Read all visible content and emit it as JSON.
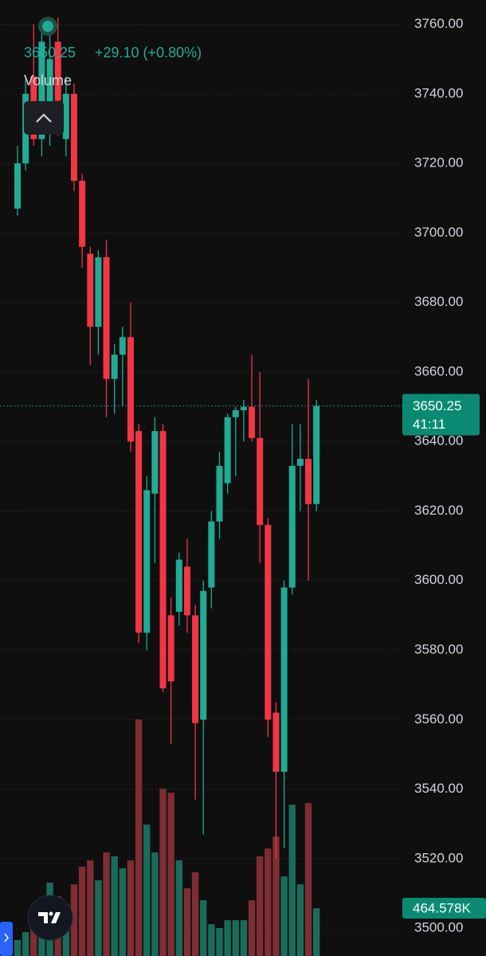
{
  "chart_data": {
    "type": "candlestick",
    "header": {
      "price": "3650.25",
      "change": "+29.10 (+0.80%)",
      "indicator": "Volume"
    },
    "open": [
      3707,
      3720,
      3745,
      3727,
      3735,
      3755,
      3727,
      3740,
      3715,
      3694,
      3673,
      3693,
      3658,
      3665,
      3670,
      3643,
      3585,
      3625,
      3643,
      3590,
      3591,
      3604,
      3590,
      3560,
      3598,
      3617,
      3628,
      3647,
      3649,
      3650,
      3641,
      3616,
      3562,
      3545,
      3598,
      3633,
      3635,
      3622
    ],
    "high": [
      3725,
      3745,
      3760,
      3760,
      3762,
      3762,
      3745,
      3743,
      3717,
      3696,
      3695,
      3698,
      3668,
      3673,
      3680,
      3645,
      3630,
      3647,
      3645,
      3595,
      3608,
      3612,
      3593,
      3600,
      3620,
      3637,
      3648,
      3650,
      3652,
      3665,
      3660,
      3618,
      3565,
      3600,
      3645,
      3645,
      3658,
      3652
    ],
    "low": [
      3705,
      3718,
      3725,
      3722,
      3725,
      3728,
      3722,
      3712,
      3690,
      3662,
      3665,
      3647,
      3648,
      3650,
      3637,
      3582,
      3580,
      3605,
      3568,
      3553,
      3587,
      3585,
      3537,
      3527,
      3592,
      3612,
      3625,
      3630,
      3640,
      3640,
      3605,
      3555,
      3520,
      3523,
      3596,
      3620,
      3600,
      3620
    ],
    "close": [
      3720,
      3740,
      3727,
      3755,
      3750,
      3738,
      3740,
      3715,
      3696,
      3673,
      3693,
      3658,
      3665,
      3670,
      3640,
      3585,
      3626,
      3643,
      3569,
      3571,
      3606,
      3590,
      3559,
      3597,
      3617,
      3633,
      3647,
      3649,
      3650,
      3641,
      3616,
      3560,
      3545,
      3598,
      3633,
      3635,
      3622,
      3650.25
    ],
    "volume": [
      155000,
      232000,
      348000,
      387000,
      712000,
      581000,
      503000,
      697000,
      867000,
      929000,
      735000,
      1006000,
      968000,
      852000,
      929000,
      2299000,
      1277000,
      1006000,
      1626000,
      1587000,
      929000,
      658000,
      813000,
      542000,
      310000,
      271000,
      348000,
      348000,
      348000,
      542000,
      968000,
      1045000,
      1161000,
      774000,
      1471000,
      697000,
      1486000,
      464578
    ],
    "up_color": "#22ab94",
    "down_color": "#f23645",
    "up_volume_color": "#1b6b5a",
    "down_volume_color": "#7d2d33",
    "ylim": [
      3492,
      3767
    ],
    "yticks": [
      {
        "value": 3760,
        "label": "3760.00"
      },
      {
        "value": 3740,
        "label": "3740.00"
      },
      {
        "value": 3720,
        "label": "3720.00"
      },
      {
        "value": 3700,
        "label": "3700.00"
      },
      {
        "value": 3680,
        "label": "3680.00"
      },
      {
        "value": 3660,
        "label": "3660.00"
      },
      {
        "value": 3640,
        "label": "3640.00"
      },
      {
        "value": 3620,
        "label": "3620.00"
      },
      {
        "value": 3600,
        "label": "3600.00"
      },
      {
        "value": 3580,
        "label": "3580.00"
      },
      {
        "value": 3560,
        "label": "3560.00"
      },
      {
        "value": 3540,
        "label": "3540.00"
      },
      {
        "value": 3520,
        "label": "3520.00"
      },
      {
        "value": 3500,
        "label": "3500.00"
      }
    ],
    "volume_ylim": [
      0,
      2400000
    ],
    "grid": true,
    "price_badge": {
      "value": 3650.25,
      "label": "3650.25",
      "timer": "41:11"
    },
    "volume_badge": {
      "value": 464578,
      "label": "464.578K"
    }
  }
}
